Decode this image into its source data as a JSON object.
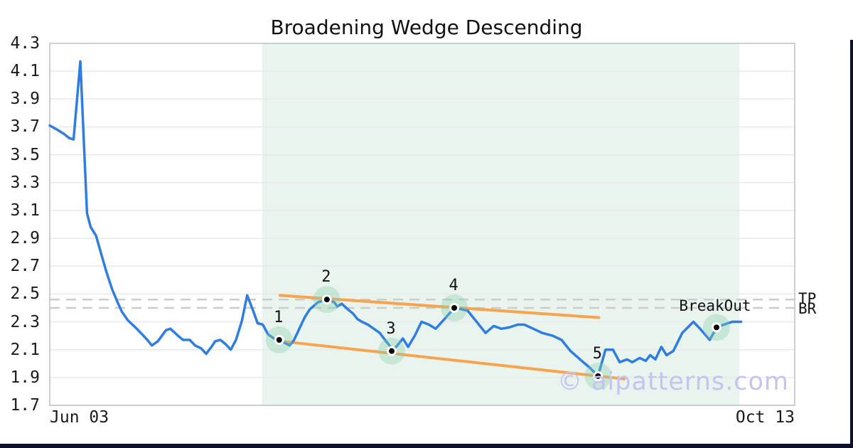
{
  "page": {
    "title": "Broadening Wedge Descending",
    "watermark": "© aipatterns.com"
  },
  "colors": {
    "price_line": "#2e7de0",
    "trendline": "#f7a44f",
    "shaded_region": "#e9f4ef",
    "marker_halo": "rgba(134,206,169,0.35)",
    "marker_dot": "#000000",
    "grid": "#e7e9ec",
    "plot_border": "#c9ced3",
    "dashed_level": "#cccccc",
    "frame": "#0e1128",
    "watermark": "#c7c3f0"
  },
  "chart_data": {
    "type": "line",
    "title": "Broadening Wedge Descending",
    "pattern_name": "Broadening Wedge Descending",
    "x_axis": {
      "tick_labels": [
        "Jun 03",
        "Oct 13"
      ]
    },
    "y_axis": {
      "min": 1.7,
      "max": 4.3,
      "step": 0.2,
      "tick_labels": [
        "4.3",
        "4.1",
        "3.9",
        "3.7",
        "3.5",
        "3.3",
        "3.1",
        "2.9",
        "2.7",
        "2.5",
        "2.3",
        "2.1",
        "1.9",
        "1.7"
      ],
      "tick_values": [
        4.3,
        4.1,
        3.9,
        3.7,
        3.5,
        3.3,
        3.1,
        2.9,
        2.7,
        2.5,
        2.3,
        2.1,
        1.9,
        1.7
      ]
    },
    "grid": true,
    "series": [
      {
        "name": "price",
        "points": [
          [
            0,
            3.71
          ],
          [
            1,
            3.68
          ],
          [
            1.9,
            3.65
          ],
          [
            2.6,
            3.62
          ],
          [
            3.2,
            3.61
          ],
          [
            4.1,
            4.17
          ],
          [
            5,
            3.08
          ],
          [
            5.5,
            2.98
          ],
          [
            6.2,
            2.92
          ],
          [
            6.9,
            2.79
          ],
          [
            7.6,
            2.66
          ],
          [
            8.4,
            2.53
          ],
          [
            9.1,
            2.44
          ],
          [
            9.7,
            2.37
          ],
          [
            10.5,
            2.31
          ],
          [
            11.5,
            2.26
          ],
          [
            12.4,
            2.21
          ],
          [
            13.1,
            2.17
          ],
          [
            13.7,
            2.13
          ],
          [
            14.5,
            2.16
          ],
          [
            15.6,
            2.24
          ],
          [
            16.2,
            2.25
          ],
          [
            17.2,
            2.2
          ],
          [
            17.9,
            2.17
          ],
          [
            18.8,
            2.17
          ],
          [
            19.5,
            2.13
          ],
          [
            20.3,
            2.11
          ],
          [
            21,
            2.07
          ],
          [
            21.7,
            2.12
          ],
          [
            22.2,
            2.16
          ],
          [
            22.9,
            2.17
          ],
          [
            23.6,
            2.14
          ],
          [
            24.3,
            2.1
          ],
          [
            25,
            2.17
          ],
          [
            25.8,
            2.31
          ],
          [
            26.5,
            2.49
          ],
          [
            27.3,
            2.38
          ],
          [
            27.9,
            2.29
          ],
          [
            28.6,
            2.28
          ],
          [
            29.3,
            2.21
          ],
          [
            30.1,
            2.18
          ],
          [
            30.8,
            2.17
          ],
          [
            31.5,
            2.15
          ],
          [
            32.2,
            2.13
          ],
          [
            32.8,
            2.17
          ],
          [
            33.5,
            2.25
          ],
          [
            34.2,
            2.33
          ],
          [
            34.9,
            2.39
          ],
          [
            36,
            2.44
          ],
          [
            37.2,
            2.46
          ],
          [
            38.2,
            2.44
          ],
          [
            38.6,
            2.41
          ],
          [
            39.2,
            2.43
          ],
          [
            40,
            2.39
          ],
          [
            40.7,
            2.36
          ],
          [
            41.3,
            2.32
          ],
          [
            41.9,
            2.3
          ],
          [
            42.7,
            2.28
          ],
          [
            43.5,
            2.25
          ],
          [
            44.3,
            2.22
          ],
          [
            45,
            2.17
          ],
          [
            45.6,
            2.13
          ],
          [
            46,
            2.09
          ],
          [
            46.8,
            2.14
          ],
          [
            47.4,
            2.18
          ],
          [
            48.1,
            2.12
          ],
          [
            49,
            2.2
          ],
          [
            49.9,
            2.3
          ],
          [
            50.9,
            2.28
          ],
          [
            51.8,
            2.25
          ],
          [
            53,
            2.32
          ],
          [
            54.3,
            2.4
          ],
          [
            55.3,
            2.39
          ],
          [
            56.1,
            2.38
          ],
          [
            57.3,
            2.3
          ],
          [
            58.5,
            2.22
          ],
          [
            59.6,
            2.27
          ],
          [
            60.6,
            2.25
          ],
          [
            61.7,
            2.26
          ],
          [
            62.8,
            2.28
          ],
          [
            63.7,
            2.28
          ],
          [
            64.9,
            2.25
          ],
          [
            66.1,
            2.22
          ],
          [
            67.5,
            2.2
          ],
          [
            68.7,
            2.17
          ],
          [
            69.9,
            2.09
          ],
          [
            71.4,
            2.02
          ],
          [
            72.5,
            1.97
          ],
          [
            73.6,
            1.91
          ],
          [
            74.6,
            2.1
          ],
          [
            75.6,
            2.1
          ],
          [
            76.5,
            2.01
          ],
          [
            77.5,
            2.03
          ],
          [
            78.2,
            2.01
          ],
          [
            79.2,
            2.04
          ],
          [
            80,
            2.02
          ],
          [
            80.6,
            2.06
          ],
          [
            81.3,
            2.03
          ],
          [
            82.1,
            2.12
          ],
          [
            82.8,
            2.06
          ],
          [
            83.7,
            2.09
          ],
          [
            84.9,
            2.22
          ],
          [
            86.4,
            2.3
          ],
          [
            87.3,
            2.25
          ],
          [
            88.6,
            2.17
          ],
          [
            89.5,
            2.26
          ],
          [
            90.5,
            2.28
          ],
          [
            91.6,
            2.3
          ],
          [
            92.8,
            2.3
          ]
        ]
      }
    ],
    "pattern_points": [
      {
        "label": "1",
        "x_pct": 30.8,
        "value": 2.17
      },
      {
        "label": "2",
        "x_pct": 37.2,
        "value": 2.46
      },
      {
        "label": "3",
        "x_pct": 45.9,
        "value": 2.09
      },
      {
        "label": "4",
        "x_pct": 54.3,
        "value": 2.4
      },
      {
        "label": "5",
        "x_pct": 73.6,
        "value": 1.91
      }
    ],
    "breakout": {
      "label": "BreakOut",
      "x_pct": 89.5,
      "value": 2.26
    },
    "trendlines": [
      {
        "name": "upper-resistance",
        "from": [
          30.9,
          2.49
        ],
        "to": [
          73.7,
          2.33
        ]
      },
      {
        "name": "lower-support",
        "from": [
          31.1,
          2.16
        ],
        "to": [
          77.1,
          1.89
        ]
      }
    ],
    "levels": [
      {
        "label": "TP",
        "value": 2.46
      },
      {
        "label": "BR",
        "value": 2.4
      }
    ],
    "shaded_region": {
      "x_pct_start": 28.5,
      "x_pct_end": 92.6
    }
  }
}
